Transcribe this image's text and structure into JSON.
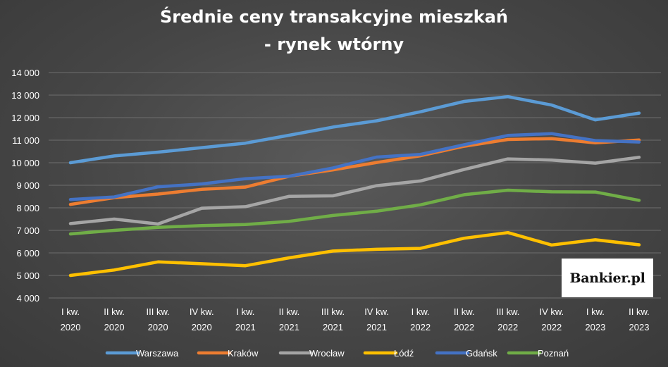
{
  "chart_data": {
    "type": "line",
    "title_lines": [
      "Średnie ceny transakcyjne mieszkań",
      "- rynek wtórny"
    ],
    "x": [
      [
        "I kw.",
        "2020"
      ],
      [
        "II kw.",
        "2020"
      ],
      [
        "III kw.",
        "2020"
      ],
      [
        "IV kw.",
        "2020"
      ],
      [
        "I kw.",
        "2021"
      ],
      [
        "II kw.",
        "2021"
      ],
      [
        "III kw.",
        "2021"
      ],
      [
        "IV kw.",
        "2021"
      ],
      [
        "I kw.",
        "2022"
      ],
      [
        "II kw.",
        "2022"
      ],
      [
        "III kw.",
        "2022"
      ],
      [
        "IV kw.",
        "2022"
      ],
      [
        "I kw.",
        "2023"
      ],
      [
        "II kw.",
        "2023"
      ]
    ],
    "ylim": [
      4000,
      14000
    ],
    "yticks": [
      4000,
      5000,
      6000,
      7000,
      8000,
      9000,
      10000,
      11000,
      12000,
      13000,
      14000
    ],
    "ytick_labels": [
      "4 000",
      "5 000",
      "6 000",
      "7 000",
      "8 000",
      "9 000",
      "10 000",
      "11 000",
      "12 000",
      "13 000",
      "14 000"
    ],
    "grid": "horizontal",
    "legend_position": "bottom",
    "series": [
      {
        "name": "Warszawa",
        "color": "#5b9bd5",
        "values": [
          10000,
          10300,
          10470,
          10670,
          10870,
          11220,
          11580,
          11860,
          12260,
          12720,
          12930,
          12560,
          11900,
          12200
        ]
      },
      {
        "name": "Kraków",
        "color": "#ed7d31",
        "values": [
          8150,
          8450,
          8610,
          8820,
          8920,
          9400,
          9680,
          10010,
          10310,
          10730,
          11030,
          11070,
          10880,
          11010
        ]
      },
      {
        "name": "Wrocław",
        "color": "#a5a5a5",
        "values": [
          7300,
          7500,
          7280,
          7980,
          8050,
          8510,
          8530,
          8980,
          9190,
          9700,
          10170,
          10120,
          9980,
          10240
        ]
      },
      {
        "name": "Łódź",
        "color": "#ffc000",
        "values": [
          5000,
          5240,
          5600,
          5520,
          5430,
          5780,
          6080,
          6160,
          6200,
          6650,
          6900,
          6350,
          6580,
          6360
        ]
      },
      {
        "name": "Gdańsk",
        "color": "#4472c4",
        "values": [
          8370,
          8480,
          8930,
          9060,
          9290,
          9400,
          9770,
          10250,
          10370,
          10800,
          11210,
          11290,
          10980,
          10920
        ]
      },
      {
        "name": "Poznań",
        "color": "#70ad47",
        "values": [
          6840,
          7000,
          7130,
          7210,
          7260,
          7400,
          7660,
          7850,
          8130,
          8580,
          8780,
          8710,
          8700,
          8330
        ]
      }
    ]
  },
  "watermark": {
    "text": "Bankier.pl"
  }
}
